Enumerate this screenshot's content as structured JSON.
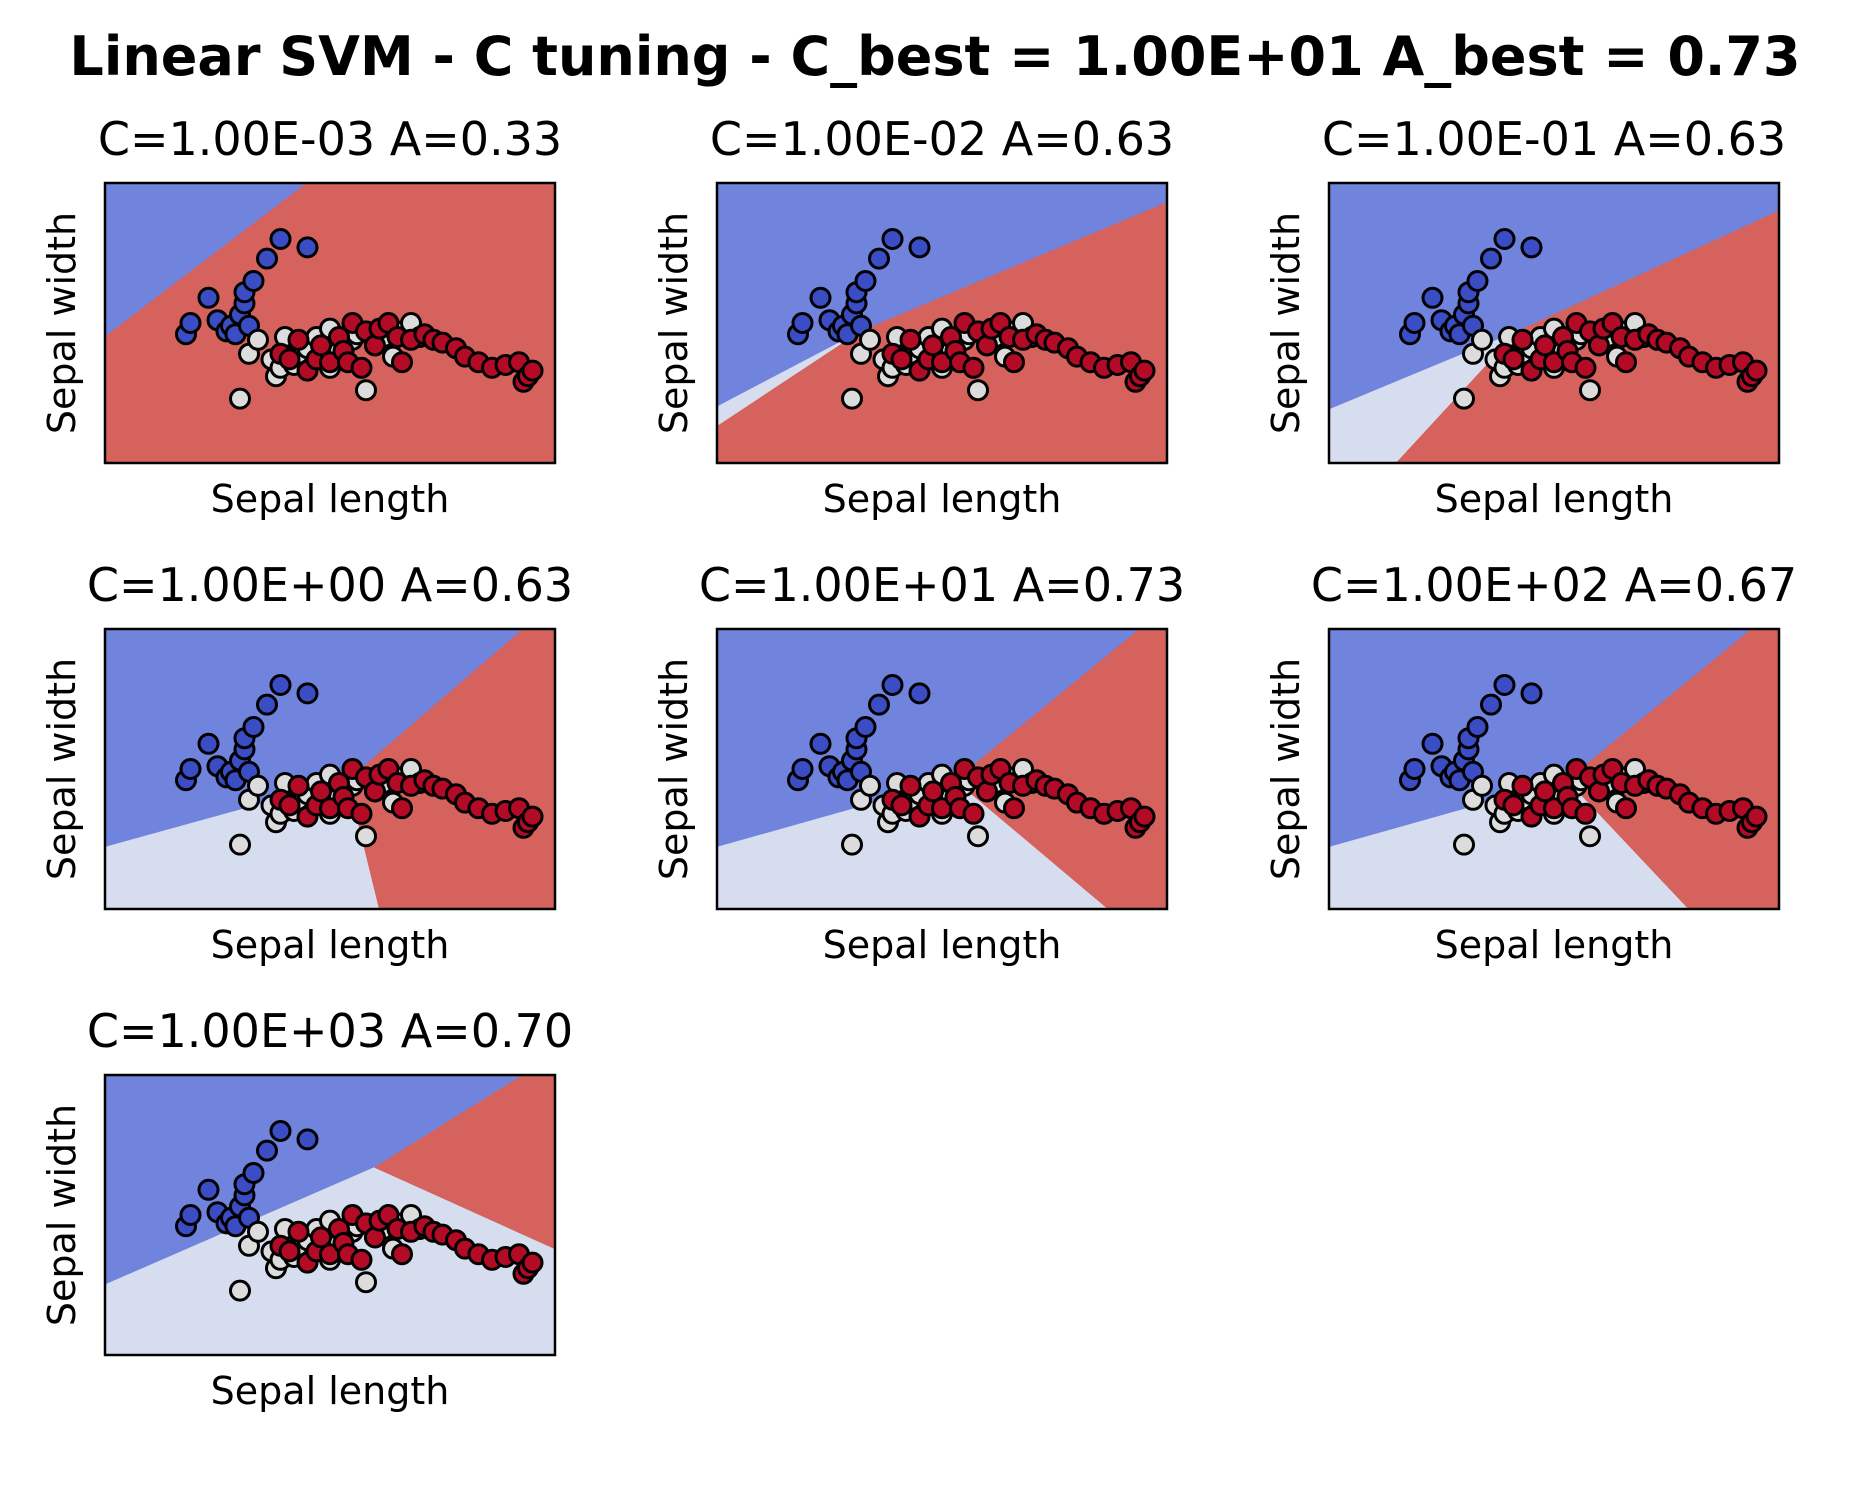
{
  "figure": {
    "title": "Linear SVM - C tuning - C_best = 1.00E+01 A_best = 0.73"
  },
  "colors": {
    "class_0_region": "#7084de",
    "class_1_region": "#d5ddee",
    "class_2_region": "#d5625d",
    "class_0_point": "#3a4dc4",
    "class_1_point": "#dddcdc",
    "class_2_point": "#b30b26",
    "point_edge": "#000000"
  },
  "chart_data": [
    {
      "type": "scatter",
      "title": "C=1.00E-03 A=0.33",
      "xlabel": "Sepal length",
      "ylabel": "Sepal width",
      "ticks_shown": false,
      "xlim": [
        0,
        1
      ],
      "ylim": [
        0,
        1
      ],
      "regions": [
        {
          "class": 0,
          "polygon": [
            [
              0,
              0.45
            ],
            [
              0,
              1
            ],
            [
              0.45,
              1
            ]
          ]
        },
        {
          "class": 2,
          "polygon": [
            [
              0,
              0
            ],
            [
              1,
              0
            ],
            [
              1,
              1
            ],
            [
              0.45,
              1
            ],
            [
              0,
              0.45
            ]
          ]
        }
      ]
    },
    {
      "type": "scatter",
      "title": "C=1.00E-02 A=0.63",
      "xlabel": "Sepal length",
      "ylabel": "Sepal width",
      "ticks_shown": false,
      "xlim": [
        0,
        1
      ],
      "ylim": [
        0,
        1
      ],
      "regions": [
        {
          "class": 0,
          "polygon": [
            [
              0,
              0.2
            ],
            [
              0,
              1
            ],
            [
              1,
              1
            ],
            [
              1,
              0.93
            ],
            [
              0.32,
              0.47
            ]
          ]
        },
        {
          "class": 1,
          "polygon": [
            [
              0,
              0.13
            ],
            [
              0,
              0.2
            ],
            [
              0.32,
              0.47
            ]
          ]
        },
        {
          "class": 2,
          "polygon": [
            [
              0,
              0
            ],
            [
              1,
              0
            ],
            [
              1,
              0.93
            ],
            [
              0.32,
              0.47
            ],
            [
              0,
              0.13
            ]
          ]
        }
      ]
    },
    {
      "type": "scatter",
      "title": "C=1.00E-01 A=0.63",
      "xlabel": "Sepal length",
      "ylabel": "Sepal width",
      "ticks_shown": false,
      "xlim": [
        0,
        1
      ],
      "ylim": [
        0,
        1
      ],
      "regions": [
        {
          "class": 0,
          "polygon": [
            [
              0,
              0.19
            ],
            [
              0,
              1
            ],
            [
              1,
              1
            ],
            [
              1,
              0.9
            ],
            [
              0.42,
              0.47
            ]
          ]
        },
        {
          "class": 1,
          "polygon": [
            [
              0,
              0
            ],
            [
              0.15,
              0
            ],
            [
              0.42,
              0.47
            ],
            [
              0,
              0.19
            ]
          ]
        },
        {
          "class": 2,
          "polygon": [
            [
              0.15,
              0
            ],
            [
              1,
              0
            ],
            [
              1,
              0.9
            ],
            [
              0.42,
              0.47
            ]
          ]
        }
      ]
    },
    {
      "type": "scatter",
      "title": "C=1.00E+00 A=0.63",
      "xlabel": "Sepal length",
      "ylabel": "Sepal width",
      "ticks_shown": false,
      "xlim": [
        0,
        1
      ],
      "ylim": [
        0,
        1
      ],
      "regions": [
        {
          "class": 0,
          "polygon": [
            [
              0,
              0.22
            ],
            [
              0,
              1
            ],
            [
              0.93,
              1
            ],
            [
              0.54,
              0.46
            ]
          ]
        },
        {
          "class": 1,
          "polygon": [
            [
              0,
              0
            ],
            [
              0.61,
              0
            ],
            [
              0.54,
              0.46
            ],
            [
              0,
              0.22
            ]
          ]
        },
        {
          "class": 2,
          "polygon": [
            [
              0.61,
              0
            ],
            [
              1,
              0
            ],
            [
              1,
              1
            ],
            [
              0.93,
              1
            ],
            [
              0.54,
              0.46
            ]
          ]
        }
      ]
    },
    {
      "type": "scatter",
      "title": "C=1.00E+01 A=0.73",
      "xlabel": "Sepal length",
      "ylabel": "Sepal width",
      "ticks_shown": false,
      "xlim": [
        0,
        1
      ],
      "ylim": [
        0,
        1
      ],
      "regions": [
        {
          "class": 0,
          "polygon": [
            [
              0,
              0.22
            ],
            [
              0,
              1
            ],
            [
              0.94,
              1
            ],
            [
              0.53,
              0.46
            ]
          ]
        },
        {
          "class": 1,
          "polygon": [
            [
              0,
              0
            ],
            [
              0.87,
              0
            ],
            [
              0.53,
              0.46
            ],
            [
              0,
              0.22
            ]
          ]
        },
        {
          "class": 2,
          "polygon": [
            [
              0.87,
              0
            ],
            [
              1,
              0
            ],
            [
              1,
              1
            ],
            [
              0.94,
              1
            ],
            [
              0.53,
              0.46
            ]
          ]
        }
      ]
    },
    {
      "type": "scatter",
      "title": "C=1.00E+02 A=0.67",
      "xlabel": "Sepal length",
      "ylabel": "Sepal width",
      "ticks_shown": false,
      "xlim": [
        0,
        1
      ],
      "ylim": [
        0,
        1
      ],
      "regions": [
        {
          "class": 0,
          "polygon": [
            [
              0,
              0.22
            ],
            [
              0,
              1
            ],
            [
              0.94,
              1
            ],
            [
              0.53,
              0.46
            ]
          ]
        },
        {
          "class": 1,
          "polygon": [
            [
              0,
              0
            ],
            [
              0.8,
              0
            ],
            [
              0.53,
              0.46
            ],
            [
              0,
              0.22
            ]
          ]
        },
        {
          "class": 2,
          "polygon": [
            [
              0.8,
              0
            ],
            [
              1,
              0
            ],
            [
              1,
              1
            ],
            [
              0.94,
              1
            ],
            [
              0.53,
              0.46
            ]
          ]
        }
      ]
    },
    {
      "type": "scatter",
      "title": "C=1.00E+03 A=0.70",
      "xlabel": "Sepal length",
      "ylabel": "Sepal width",
      "ticks_shown": false,
      "xlim": [
        0,
        1
      ],
      "ylim": [
        0,
        1
      ],
      "regions": [
        {
          "class": 0,
          "polygon": [
            [
              0,
              0.25
            ],
            [
              0,
              1
            ],
            [
              0.93,
              1
            ],
            [
              0.6,
              0.67
            ]
          ]
        },
        {
          "class": 1,
          "polygon": [
            [
              0,
              0
            ],
            [
              1,
              0
            ],
            [
              1,
              0.38
            ],
            [
              0.6,
              0.67
            ],
            [
              0,
              0.25
            ]
          ]
        },
        {
          "class": 2,
          "polygon": [
            [
              0.6,
              0.67
            ],
            [
              0.93,
              1
            ],
            [
              1,
              1
            ],
            [
              1,
              0.38
            ]
          ]
        }
      ]
    }
  ],
  "points": [
    [
      0.18,
      0.46,
      0
    ],
    [
      0.19,
      0.5,
      0
    ],
    [
      0.23,
      0.59,
      0
    ],
    [
      0.25,
      0.51,
      0
    ],
    [
      0.27,
      0.47,
      0
    ],
    [
      0.28,
      0.49,
      0
    ],
    [
      0.29,
      0.46,
      0
    ],
    [
      0.3,
      0.53,
      0
    ],
    [
      0.31,
      0.57,
      0
    ],
    [
      0.31,
      0.61,
      0
    ],
    [
      0.32,
      0.49,
      0
    ],
    [
      0.33,
      0.65,
      0
    ],
    [
      0.36,
      0.73,
      0
    ],
    [
      0.39,
      0.8,
      0
    ],
    [
      0.45,
      0.77,
      0
    ],
    [
      0.3,
      0.23,
      1
    ],
    [
      0.32,
      0.39,
      1
    ],
    [
      0.34,
      0.44,
      1
    ],
    [
      0.37,
      0.37,
      1
    ],
    [
      0.38,
      0.31,
      1
    ],
    [
      0.39,
      0.34,
      1
    ],
    [
      0.4,
      0.45,
      1
    ],
    [
      0.42,
      0.35,
      1
    ],
    [
      0.43,
      0.39,
      1
    ],
    [
      0.45,
      0.41,
      1
    ],
    [
      0.47,
      0.45,
      1
    ],
    [
      0.48,
      0.38,
      1
    ],
    [
      0.5,
      0.48,
      1
    ],
    [
      0.5,
      0.34,
      1
    ],
    [
      0.52,
      0.4,
      1
    ],
    [
      0.55,
      0.44,
      1
    ],
    [
      0.56,
      0.46,
      1
    ],
    [
      0.58,
      0.26,
      1
    ],
    [
      0.6,
      0.42,
      1
    ],
    [
      0.62,
      0.45,
      1
    ],
    [
      0.64,
      0.38,
      1
    ],
    [
      0.66,
      0.47,
      1
    ],
    [
      0.68,
      0.5,
      1
    ],
    [
      0.7,
      0.45,
      1
    ],
    [
      0.39,
      0.39,
      2
    ],
    [
      0.41,
      0.37,
      2
    ],
    [
      0.43,
      0.44,
      2
    ],
    [
      0.45,
      0.33,
      2
    ],
    [
      0.47,
      0.37,
      2
    ],
    [
      0.48,
      0.42,
      2
    ],
    [
      0.5,
      0.36,
      2
    ],
    [
      0.52,
      0.45,
      2
    ],
    [
      0.53,
      0.4,
      2
    ],
    [
      0.54,
      0.36,
      2
    ],
    [
      0.55,
      0.5,
      2
    ],
    [
      0.57,
      0.34,
      2
    ],
    [
      0.58,
      0.47,
      2
    ],
    [
      0.6,
      0.42,
      2
    ],
    [
      0.61,
      0.48,
      2
    ],
    [
      0.63,
      0.5,
      2
    ],
    [
      0.65,
      0.45,
      2
    ],
    [
      0.66,
      0.36,
      2
    ],
    [
      0.68,
      0.44,
      2
    ],
    [
      0.71,
      0.46,
      2
    ],
    [
      0.73,
      0.44,
      2
    ],
    [
      0.75,
      0.43,
      2
    ],
    [
      0.78,
      0.41,
      2
    ],
    [
      0.8,
      0.38,
      2
    ],
    [
      0.83,
      0.36,
      2
    ],
    [
      0.86,
      0.34,
      2
    ],
    [
      0.89,
      0.35,
      2
    ],
    [
      0.92,
      0.36,
      2
    ],
    [
      0.93,
      0.29,
      2
    ],
    [
      0.94,
      0.31,
      2
    ],
    [
      0.95,
      0.33,
      2
    ]
  ]
}
